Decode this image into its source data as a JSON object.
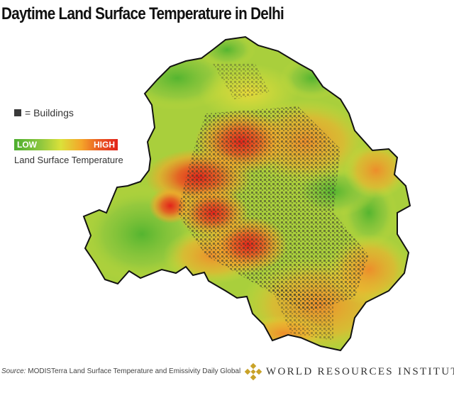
{
  "title": "Daytime Land Surface Temperature in Delhi",
  "legend": {
    "buildings_label": "= Buildings",
    "low_label": "LOW",
    "high_label": "HIGH",
    "scale_label": "Land Surface Temperature"
  },
  "footer": {
    "source_prefix": "Source:",
    "source_text": " MODISTerra Land Surface Temperature and Emissivity Daily Global",
    "org_name": "WORLD RESOURCES INSTITUTE"
  },
  "colors": {
    "low": "#4cae2f",
    "mid": "#dbe13a",
    "high": "#e2231a",
    "buildings": "#3a3a3a"
  }
}
